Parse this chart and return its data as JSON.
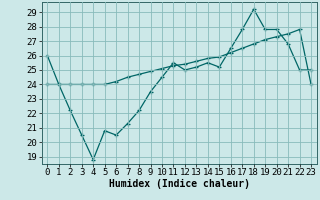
{
  "xlabel": "Humidex (Indice chaleur)",
  "bg_color": "#cce8e8",
  "grid_color": "#88bbbb",
  "line_color": "#006666",
  "xlim": [
    -0.5,
    23.5
  ],
  "ylim": [
    18.5,
    29.7
  ],
  "yticks": [
    19,
    20,
    21,
    22,
    23,
    24,
    25,
    26,
    27,
    28,
    29
  ],
  "xticks": [
    0,
    1,
    2,
    3,
    4,
    5,
    6,
    7,
    8,
    9,
    10,
    11,
    12,
    13,
    14,
    15,
    16,
    17,
    18,
    19,
    20,
    21,
    22,
    23
  ],
  "line1_x": [
    0,
    1,
    2,
    3,
    4,
    5,
    6,
    7,
    8,
    9,
    10,
    11,
    12,
    13,
    14,
    15,
    16,
    17,
    18,
    19,
    20,
    21,
    22,
    23
  ],
  "line1_y": [
    26,
    24,
    22.2,
    20.5,
    18.8,
    20.8,
    20.5,
    21.3,
    22.2,
    23.5,
    24.5,
    25.5,
    25.0,
    25.2,
    25.5,
    25.2,
    26.5,
    27.8,
    29.2,
    27.8,
    27.8,
    26.8,
    25.0,
    25.0
  ],
  "line2_x": [
    0,
    1,
    2,
    3,
    4,
    5,
    6,
    7,
    8,
    9,
    10,
    11,
    12,
    13,
    14,
    15,
    16,
    17,
    18,
    19,
    20,
    21,
    22,
    23
  ],
  "line2_y": [
    24.0,
    24.0,
    24.0,
    24.0,
    24.0,
    24.0,
    24.2,
    24.5,
    24.7,
    24.9,
    25.1,
    25.3,
    25.4,
    25.6,
    25.8,
    25.9,
    26.2,
    26.5,
    26.8,
    27.1,
    27.3,
    27.5,
    27.8,
    24.0
  ],
  "font_size_label": 7,
  "font_size_tick": 6.5
}
